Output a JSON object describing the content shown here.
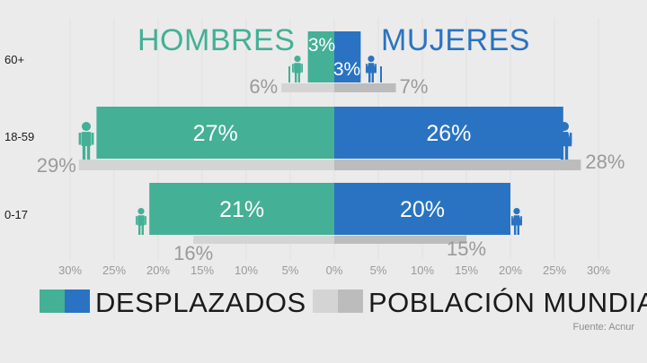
{
  "titles": {
    "left": "HOMBRES",
    "right": "MUJERES"
  },
  "legend": {
    "displaced_label": "DESPLAZADOS",
    "world_label": "POBLACIÓN MUNDIAL"
  },
  "source": "Fuente: Acnur",
  "colors": {
    "men": "#44b096",
    "women": "#2a73c2",
    "world_light": "#d4d4d4",
    "world_dark": "#bcbcbc",
    "background": "#ebebeb",
    "axis_text": "#9a9a9a",
    "world_text": "#9a9a9a"
  },
  "chart_data": {
    "type": "bar",
    "orientation": "horizontal-population-pyramid",
    "categories": [
      "60+",
      "18-59",
      "0-17"
    ],
    "series": [
      {
        "name": "HOMBRES DESPLAZADOS",
        "values": [
          3,
          27,
          21
        ],
        "labels": [
          "3%",
          "27%",
          "21%"
        ]
      },
      {
        "name": "MUJERES DESPLAZADOS",
        "values": [
          3,
          26,
          20
        ],
        "labels": [
          "3%",
          "26%",
          "20%"
        ]
      },
      {
        "name": "HOMBRES POBLACIÓN MUNDIAL",
        "values": [
          6,
          29,
          16
        ],
        "labels": [
          "6%",
          "29%",
          "16%"
        ]
      },
      {
        "name": "MUJERES POBLACIÓN MUNDIAL",
        "values": [
          7,
          28,
          15
        ],
        "labels": [
          "7%",
          "28%",
          "15%"
        ]
      }
    ],
    "x_ticks": [
      "30%",
      "25%",
      "20%",
      "15%",
      "10%",
      "5%",
      "0%",
      "5%",
      "10%",
      "15%",
      "20%",
      "25%",
      "30%"
    ],
    "x_tick_values": [
      -30,
      -25,
      -20,
      -15,
      -10,
      -5,
      0,
      5,
      10,
      15,
      20,
      25,
      30
    ],
    "xlim": [
      -30,
      30
    ],
    "grid": true,
    "legend_position": "bottom"
  }
}
